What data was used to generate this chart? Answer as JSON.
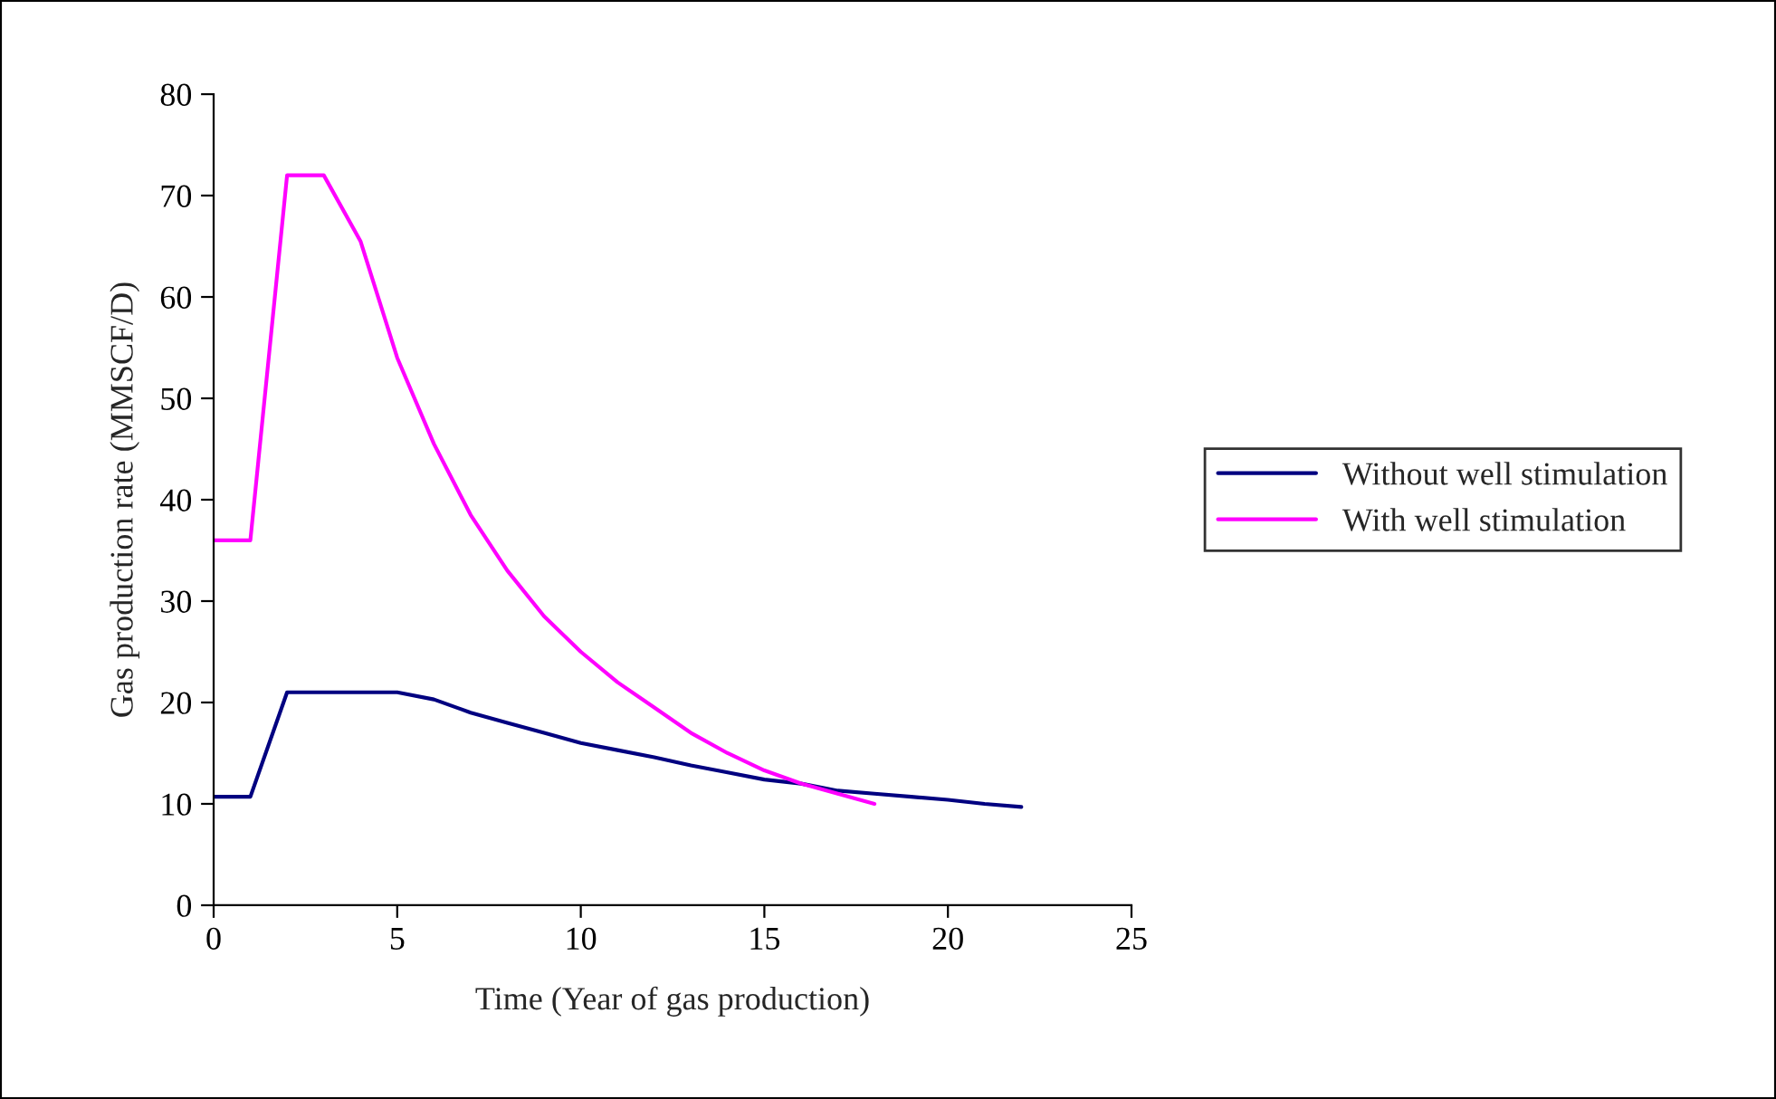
{
  "chart_data": {
    "type": "line",
    "xlabel": "Time (Year of gas production)",
    "ylabel": "Gas production rate (MMSCF/D)",
    "xlim": [
      0,
      25
    ],
    "xticks": [
      0,
      5,
      10,
      15,
      20,
      25
    ],
    "ylim": [
      0,
      80
    ],
    "yticks": [
      0,
      10,
      20,
      30,
      40,
      50,
      60,
      70,
      80
    ],
    "grid": false,
    "legend": "right",
    "marker": "none",
    "line_style": "solid",
    "series": [
      {
        "name": "Without well stimulation",
        "color": "#000080",
        "x": [
          0,
          1,
          2,
          3,
          4,
          5,
          6,
          7,
          8,
          9,
          10,
          11,
          12,
          13,
          14,
          15,
          16,
          17,
          18,
          19,
          20,
          21,
          22
        ],
        "values": [
          10.7,
          10.7,
          21,
          21,
          21,
          21,
          20.3,
          19,
          18,
          17,
          16,
          15.3,
          14.6,
          13.8,
          13.1,
          12.4,
          12,
          11.3,
          11,
          10.7,
          10.4,
          10,
          9.7
        ]
      },
      {
        "name": "With well stimulation",
        "color": "#ff00ff",
        "x": [
          0,
          1,
          2,
          3,
          4,
          5,
          6,
          7,
          8,
          9,
          10,
          11,
          12,
          13,
          14,
          15,
          16,
          17,
          18
        ],
        "values": [
          36,
          36,
          72,
          72,
          65.5,
          54,
          45.5,
          38.5,
          33,
          28.5,
          25,
          22,
          19.5,
          17,
          15,
          13.3,
          12,
          11,
          10
        ]
      }
    ]
  }
}
